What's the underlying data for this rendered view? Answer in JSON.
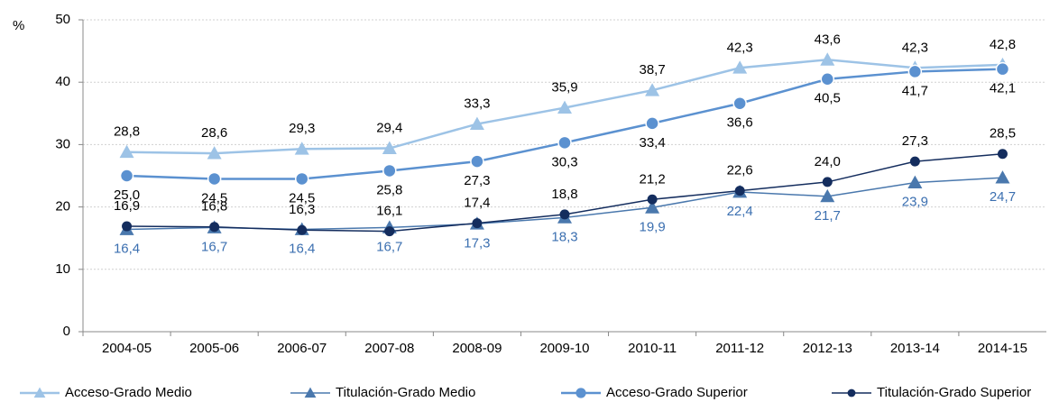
{
  "chart_data": {
    "type": "line",
    "y_label": "%",
    "categories": [
      "2004-05",
      "2005-06",
      "2006-07",
      "2007-08",
      "2008-09",
      "2009-10",
      "2010-11",
      "2011-12",
      "2012-13",
      "2013-14",
      "2014-15"
    ],
    "series": [
      {
        "name": "Acceso-Grado Medio",
        "color": "#9dc3e6",
        "marker": "triangle",
        "values": [
          28.8,
          28.6,
          29.3,
          29.4,
          33.3,
          35.9,
          38.7,
          42.3,
          43.6,
          42.3,
          42.8
        ],
        "value_labels": [
          "28,8",
          "28,6",
          "29,3",
          "29,4",
          "33,3",
          "35,9",
          "38,7",
          "42,3",
          "43,6",
          "42,3",
          "42,8"
        ]
      },
      {
        "name": "Titulación-Grado Medio",
        "color": "#4a78ad",
        "marker": "triangle",
        "values": [
          16.4,
          16.7,
          16.4,
          16.7,
          17.3,
          18.3,
          19.9,
          22.4,
          21.7,
          23.9,
          24.7
        ],
        "value_labels": [
          "16,4",
          "16,7",
          "16,4",
          "16,7",
          "17,3",
          "18,3",
          "19,9",
          "22,4",
          "21,7",
          "23,9",
          "24,7"
        ]
      },
      {
        "name": "Acceso-Grado Superior",
        "color": "#5b91d0",
        "marker": "circle",
        "values": [
          25.0,
          24.5,
          24.5,
          25.8,
          27.3,
          30.3,
          33.4,
          36.6,
          40.5,
          41.7,
          42.1
        ],
        "value_labels": [
          "25,0",
          "24,5",
          "24,5",
          "25,8",
          "27,3",
          "30,3",
          "33,4",
          "36,6",
          "40,5",
          "41,7",
          "42,1"
        ]
      },
      {
        "name": "Titulación-Grado Superior",
        "color": "#142d5e",
        "marker": "circle",
        "values": [
          16.9,
          16.8,
          16.3,
          16.1,
          17.4,
          18.8,
          21.2,
          22.6,
          24.0,
          27.3,
          28.5
        ],
        "value_labels": [
          "16,9",
          "16,8",
          "16,3",
          "16,1",
          "17,4",
          "18,8",
          "21,2",
          "22,6",
          "24,0",
          "27,3",
          "28,5"
        ]
      }
    ],
    "ylim": [
      0,
      50
    ],
    "yticks": [
      0,
      10,
      20,
      30,
      40,
      50
    ],
    "grid": true,
    "legend": "bottom"
  }
}
